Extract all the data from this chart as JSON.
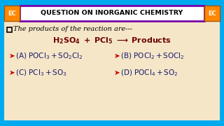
{
  "bg_color": "#f5e6c8",
  "outer_bg": "#00aaee",
  "header_text": "QUESTION ON INORGANIC CHEMISTRY",
  "header_bg": "#ffffff",
  "header_border": "#7700aa",
  "ec_box_color": "#ff8800",
  "ec_text": "EC",
  "arrow_color": "#cc0000",
  "text_color": "#1a1a6e",
  "question_color": "#000000",
  "reaction_color": "#6b0000",
  "option_arrow": "➤",
  "figsize": [
    3.2,
    1.8
  ],
  "dpi": 100
}
